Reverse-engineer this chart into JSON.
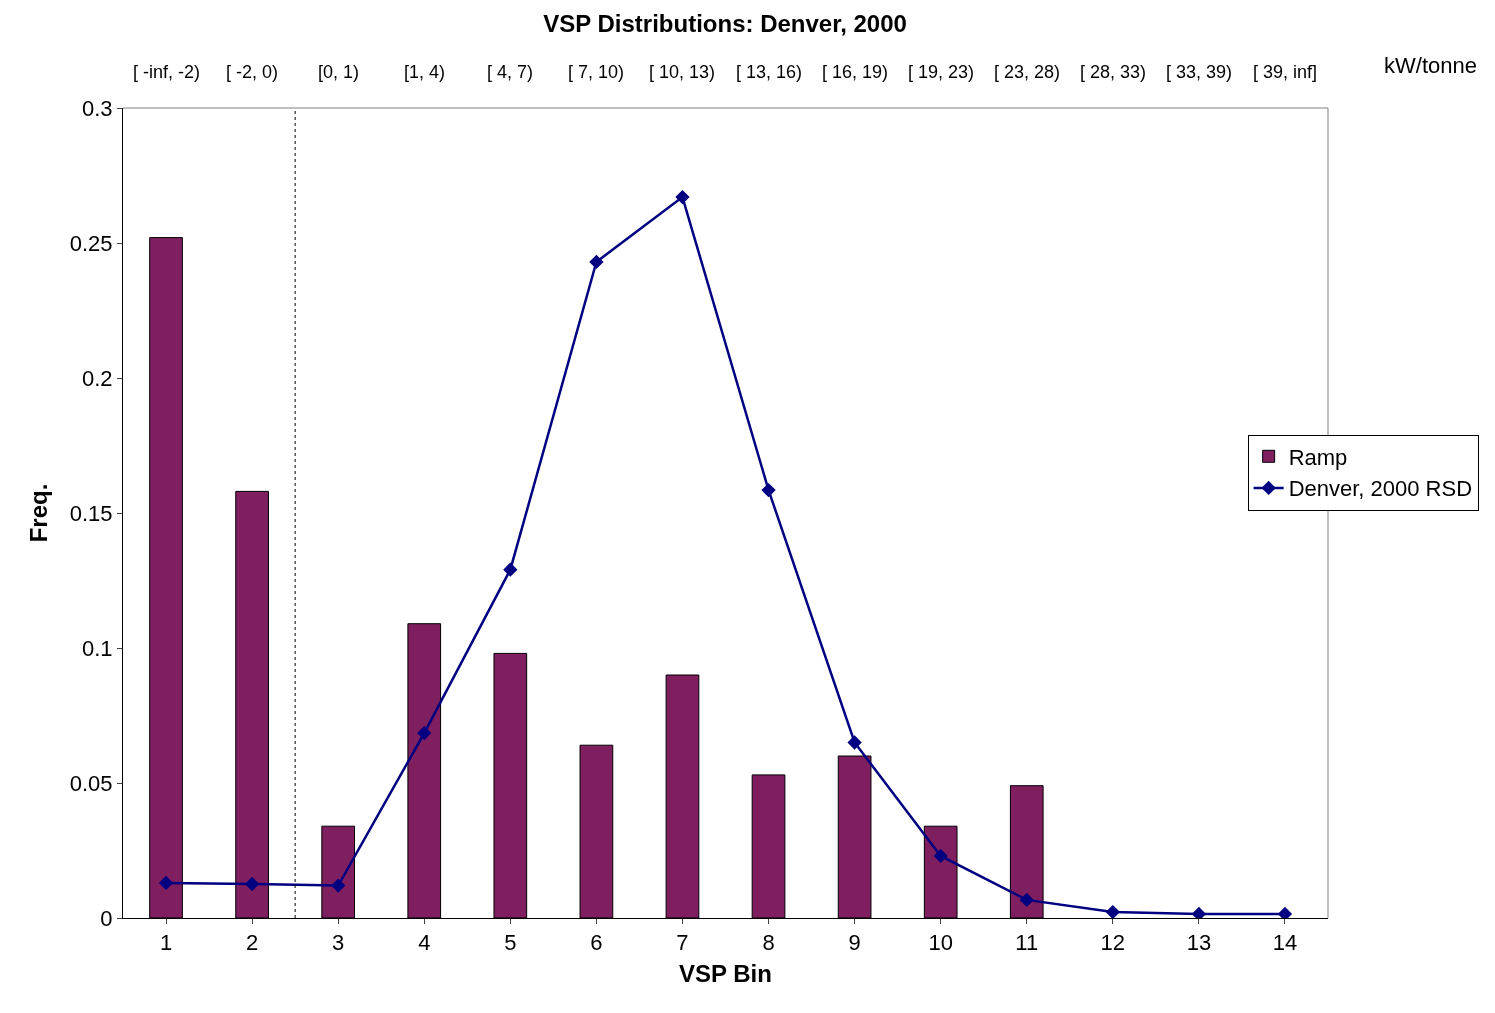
{
  "chart_data": {
    "type": "bar",
    "title": "VSP Distributions: Denver, 2000",
    "xlabel": "VSP Bin",
    "ylabel": "Freq.",
    "x2label": "kW/tonne",
    "x": [
      1,
      2,
      3,
      4,
      5,
      6,
      7,
      8,
      9,
      10,
      11,
      12,
      13,
      14
    ],
    "xlim": [
      0.5,
      14.5
    ],
    "xticks": [
      1,
      2,
      3,
      4,
      5,
      6,
      7,
      8,
      9,
      10,
      11,
      12,
      13,
      14
    ],
    "annotations": [
      "[ -inf, -2)",
      "[ -2, 0)",
      "[0, 1)",
      "[1, 4)",
      "[ 4, 7)",
      "[ 7, 10)",
      "[ 10, 13)",
      "[ 13, 16)",
      "[ 16, 19)",
      "[ 19, 23)",
      "[ 23, 28)",
      "[ 28, 33)",
      "[ 33, 39)",
      "[ 39, inf]"
    ],
    "ylim": [
      0,
      0.3
    ],
    "yticks": [
      0,
      0.05,
      0.1,
      0.15,
      0.2,
      0.25,
      0.3
    ],
    "series": [
      {
        "name": "Ramp",
        "color": "#7f1f5f",
        "values": [
          0.252,
          0.158,
          0.034,
          0.109,
          0.098,
          0.064,
          0.09,
          0.053,
          0.06,
          0.034,
          0.049,
          null,
          null,
          null
        ]
      },
      {
        "name": "Denver, 2000 RSD",
        "type": "line",
        "color": "#000080",
        "marker": "diamond",
        "values": [
          0.013,
          0.0126,
          0.012,
          0.0685,
          0.129,
          0.243,
          0.267,
          0.1585,
          0.065,
          0.023,
          0.0067,
          0.0022,
          0.0015,
          0.0015
        ]
      }
    ],
    "ref_lines": [
      {
        "axis": "x",
        "value": 2.5,
        "line_style": "dotted",
        "color": "#000000"
      }
    ],
    "legend": "right"
  }
}
